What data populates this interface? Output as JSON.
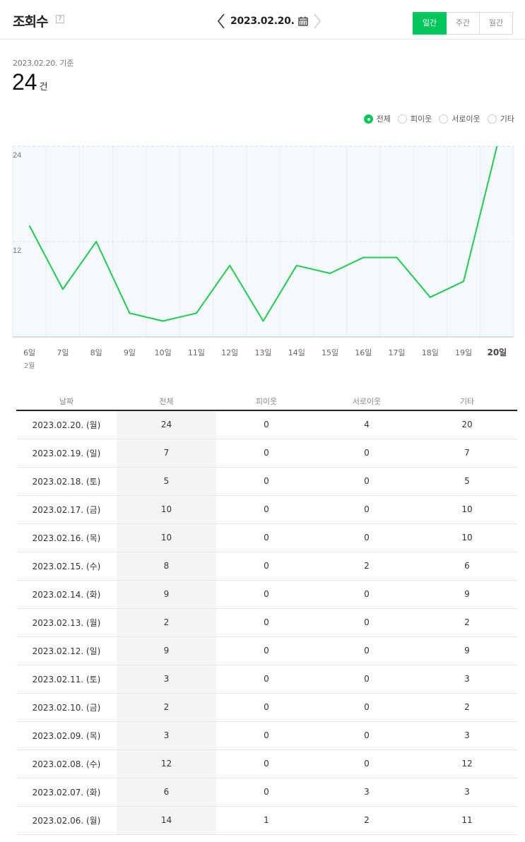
{
  "header": {
    "title": "조회수",
    "help": "?",
    "date": "2023.02.20.",
    "periods": [
      "일간",
      "주간",
      "월간"
    ],
    "active_period": "일간"
  },
  "summary": {
    "asof": "2023.02.20. 기준",
    "total": "24",
    "unit": "건"
  },
  "legend": {
    "items": [
      "전체",
      "피이웃",
      "서로이웃",
      "기타"
    ],
    "selected": "전체"
  },
  "colors": {
    "accent": "#03c75a",
    "line": "#1fcb4f",
    "plot_bg": "#f4f9fd"
  },
  "chart_data": {
    "type": "line",
    "categories": [
      "6일",
      "7일",
      "8일",
      "9일",
      "10일",
      "11일",
      "12일",
      "13일",
      "14일",
      "15일",
      "16일",
      "17일",
      "18일",
      "19일",
      "20일"
    ],
    "x_sublabel": "2월",
    "series": [
      {
        "name": "전체",
        "values": [
          14,
          6,
          12,
          3,
          2,
          3,
          9,
          2,
          9,
          8,
          10,
          10,
          5,
          7,
          24
        ]
      }
    ],
    "yticks": [
      12,
      24
    ],
    "ylim": [
      0,
      24
    ],
    "highlight_category": "20일",
    "grid": true
  },
  "table": {
    "headers": [
      "날짜",
      "전체",
      "피이웃",
      "서로이웃",
      "기타"
    ],
    "rows": [
      [
        "2023.02.20. (월)",
        "24",
        "0",
        "4",
        "20"
      ],
      [
        "2023.02.19. (일)",
        "7",
        "0",
        "0",
        "7"
      ],
      [
        "2023.02.18. (토)",
        "5",
        "0",
        "0",
        "5"
      ],
      [
        "2023.02.17. (금)",
        "10",
        "0",
        "0",
        "10"
      ],
      [
        "2023.02.16. (목)",
        "10",
        "0",
        "0",
        "10"
      ],
      [
        "2023.02.15. (수)",
        "8",
        "0",
        "2",
        "6"
      ],
      [
        "2023.02.14. (화)",
        "9",
        "0",
        "0",
        "9"
      ],
      [
        "2023.02.13. (월)",
        "2",
        "0",
        "0",
        "2"
      ],
      [
        "2023.02.12. (일)",
        "9",
        "0",
        "0",
        "9"
      ],
      [
        "2023.02.11. (토)",
        "3",
        "0",
        "0",
        "3"
      ],
      [
        "2023.02.10. (금)",
        "2",
        "0",
        "0",
        "2"
      ],
      [
        "2023.02.09. (목)",
        "3",
        "0",
        "0",
        "3"
      ],
      [
        "2023.02.08. (수)",
        "12",
        "0",
        "0",
        "12"
      ],
      [
        "2023.02.07. (화)",
        "6",
        "0",
        "3",
        "3"
      ],
      [
        "2023.02.06. (월)",
        "14",
        "1",
        "2",
        "11"
      ]
    ]
  }
}
